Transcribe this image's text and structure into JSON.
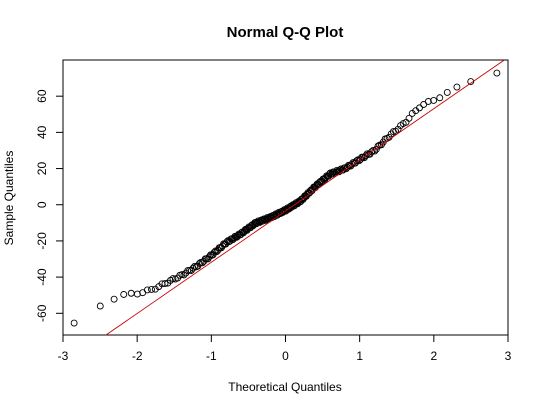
{
  "chart_data": {
    "type": "scatter",
    "title": "Normal Q-Q Plot",
    "xlabel": "Theoretical Quantiles",
    "ylabel": "Sample Quantiles",
    "xlim": [
      -3,
      3
    ],
    "ylim": [
      -72,
      80
    ],
    "xticks": [
      -3,
      -2,
      -1,
      0,
      1,
      2,
      3
    ],
    "yticks": [
      -60,
      -40,
      -20,
      0,
      20,
      40,
      60
    ],
    "grid": false,
    "point_color": "#000000",
    "line_color": "#cc0000",
    "reference_line": {
      "intercept": -3.5,
      "slope": 28.3
    },
    "n_points": 240,
    "anchor_points": {
      "x": [
        -2.85,
        -2.4,
        -2.2,
        -2.0,
        -1.8,
        -1.6,
        -1.4,
        -1.2,
        -1.0,
        -0.8,
        -0.6,
        -0.4,
        -0.2,
        0.0,
        0.2,
        0.4,
        0.6,
        0.8,
        1.0,
        1.2,
        1.4,
        1.6,
        1.8,
        2.0,
        2.2,
        2.45,
        2.85
      ],
      "y": [
        -66,
        -53,
        -50,
        -49,
        -47,
        -43,
        -39,
        -34,
        -28,
        -21,
        -16,
        -10,
        -7,
        -3,
        2,
        10,
        17,
        20,
        25,
        30,
        38,
        45,
        54,
        58,
        62,
        68,
        73
      ]
    }
  }
}
